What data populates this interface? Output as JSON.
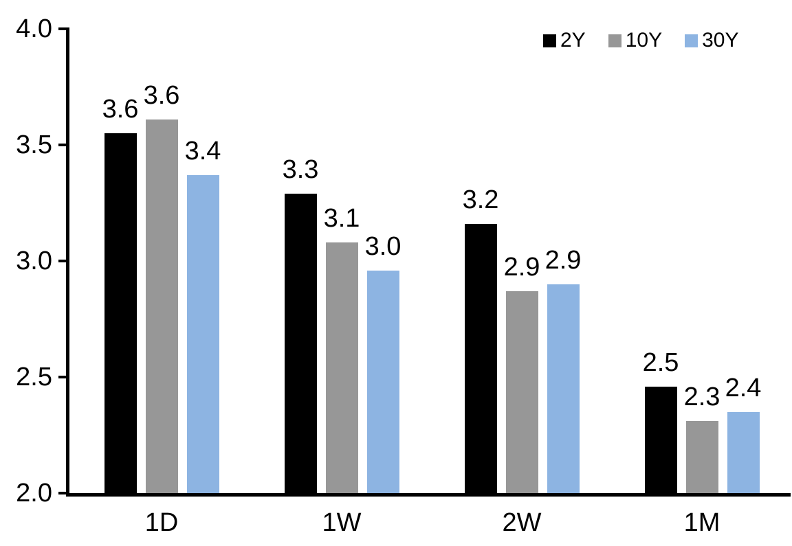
{
  "chart_data": {
    "type": "bar",
    "title": "",
    "xlabel": "",
    "ylabel": "",
    "categories": [
      "1D",
      "1W",
      "2W",
      "1M"
    ],
    "series": [
      {
        "name": "2Y",
        "color": "#000000",
        "values": [
          3.55,
          3.29,
          3.16,
          2.46
        ],
        "labels": [
          "3.6",
          "3.3",
          "3.2",
          "2.5"
        ]
      },
      {
        "name": "10Y",
        "color": "#979797",
        "values": [
          3.61,
          3.08,
          2.87,
          2.31
        ],
        "labels": [
          "3.6",
          "3.1",
          "2.9",
          "2.3"
        ]
      },
      {
        "name": "30Y",
        "color": "#8DB4E2",
        "values": [
          3.37,
          2.96,
          2.9,
          2.35
        ],
        "labels": [
          "3.4",
          "3.0",
          "2.9",
          "2.4"
        ]
      }
    ],
    "ylim": [
      2.0,
      4.0
    ],
    "ytick_step": 0.5,
    "ytick_labels": [
      "2.0",
      "2.5",
      "3.0",
      "3.5",
      "4.0"
    ],
    "grid": false,
    "legend_position": "top-right",
    "axis_color": "#000000",
    "background_color": "#FFFFFF",
    "data_labels_shown": true
  }
}
